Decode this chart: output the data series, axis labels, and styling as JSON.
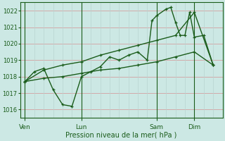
{
  "xlabel": "Pression niveau de la mer( hPa )",
  "ylim": [
    1015.5,
    1022.5
  ],
  "yticks": [
    1016,
    1017,
    1018,
    1019,
    1020,
    1021,
    1022
  ],
  "bg_color": "#cce8e4",
  "line_color": "#1a5c1a",
  "grid_color_h": "#d4a0a0",
  "grid_color_v": "#b8d4d0",
  "xtick_labels": [
    "Ven",
    "Lun",
    "Sam",
    "Dim"
  ],
  "xtick_positions": [
    0,
    24,
    56,
    72
  ],
  "vline_positions": [
    0,
    24,
    56,
    72
  ],
  "series1_x": [
    0,
    4,
    8,
    12,
    16,
    20,
    24,
    28,
    32,
    36,
    40,
    44,
    48,
    52,
    54,
    56,
    60,
    62,
    64,
    66,
    68,
    70,
    72,
    76,
    80
  ],
  "series1_y": [
    1017.7,
    1018.3,
    1018.5,
    1017.2,
    1016.3,
    1016.2,
    1018.0,
    1018.3,
    1018.6,
    1019.2,
    1019.0,
    1019.3,
    1019.5,
    1019.0,
    1021.4,
    1021.7,
    1022.1,
    1022.2,
    1021.3,
    1020.5,
    1020.5,
    1021.9,
    1020.4,
    1020.5,
    1018.7
  ],
  "series2_x": [
    0,
    8,
    16,
    24,
    32,
    40,
    48,
    56,
    64,
    72,
    80
  ],
  "series2_y": [
    1017.7,
    1018.4,
    1018.7,
    1018.9,
    1019.3,
    1019.6,
    1019.9,
    1020.2,
    1020.5,
    1021.9,
    1018.7
  ],
  "series3_x": [
    0,
    8,
    16,
    24,
    32,
    40,
    48,
    56,
    64,
    72,
    80
  ],
  "series3_y": [
    1017.7,
    1017.9,
    1018.0,
    1018.2,
    1018.4,
    1018.5,
    1018.7,
    1018.9,
    1019.2,
    1019.5,
    1018.7
  ],
  "xlim": [
    -2,
    84
  ]
}
